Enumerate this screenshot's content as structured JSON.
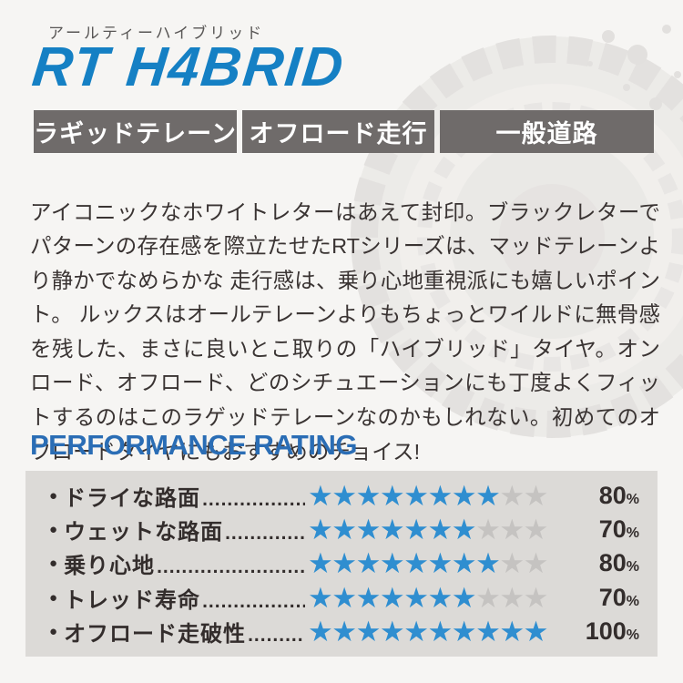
{
  "colors": {
    "logo_blue": "#1580c4",
    "heading_blue": "#2a6db5",
    "star_filled": "#2f8ed0",
    "star_empty": "#c5c3c1",
    "badge_gray": "#6f6b6a",
    "panel_bg": "#dcdad7",
    "text_dark": "#3a3433"
  },
  "header": {
    "kana_label": "アールティーハイブリッド",
    "logo": "RT H4BRID"
  },
  "badges": [
    {
      "label": "ラギッドテレーン"
    },
    {
      "label": "オフロード走行"
    },
    {
      "label": "一般道路"
    }
  ],
  "description": "アイコニックなホワイトレターはあえて封印。ブラックレターでパターンの存在感を際立たせたRTシリーズは、マッドテレーンより静かでなめらかな 走行感は、乗り心地重視派にも嬉しいポイント。 ルックスはオールテレーンよりもちょっとワイルドに無骨感を残した、まさに良いとこ取りの「ハイブリッド」タイヤ。オンロード、オフロード、どのシチュエーションにも丁度よくフィットするのはこのラゲッドテレーンなのかもしれない。初めてのオフロードタイヤにもおすすめのチョイス!",
  "ratings": {
    "heading": "PERFORMANCE RATING",
    "max_stars": 10,
    "leader": "...........................................................................",
    "unit": "%",
    "items": [
      {
        "label": "ドライな路面",
        "stars": 8,
        "percent": "80"
      },
      {
        "label": "ウェットな路面",
        "stars": 7,
        "percent": "70"
      },
      {
        "label": "乗り心地",
        "stars": 8,
        "percent": "80"
      },
      {
        "label": "トレッド寿命",
        "stars": 7,
        "percent": "70"
      },
      {
        "label": "オフロード走破性",
        "stars": 10,
        "percent": "100"
      }
    ]
  },
  "icons": {
    "star": "★",
    "bullet": "●"
  }
}
